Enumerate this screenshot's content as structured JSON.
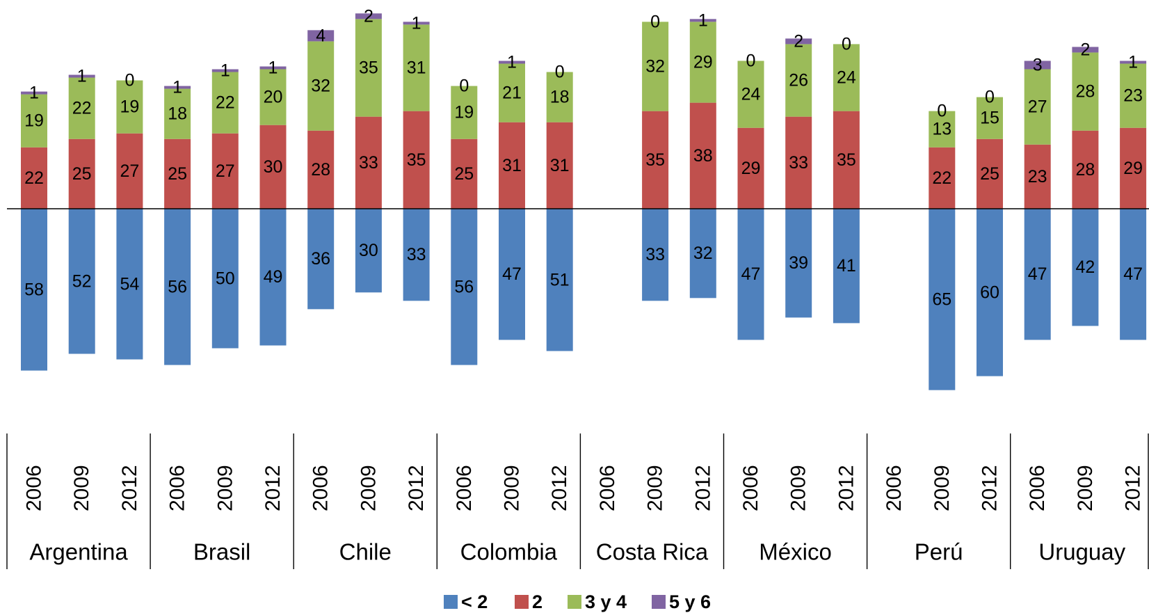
{
  "chart_data": {
    "type": "bar",
    "stacked": true,
    "series": [
      {
        "name": "< 2",
        "color": "#4F81BD",
        "direction": "down"
      },
      {
        "name": "2",
        "color": "#C0504D",
        "direction": "up"
      },
      {
        "name": "3 y 4",
        "color": "#9BBB59",
        "direction": "up"
      },
      {
        "name": "5 y 6",
        "color": "#8064A2",
        "direction": "up"
      }
    ],
    "groups": [
      {
        "country": "Argentina",
        "bars": [
          {
            "year": "2006",
            "values": [
              58,
              22,
              19,
              1
            ]
          },
          {
            "year": "2009",
            "values": [
              52,
              25,
              22,
              1
            ]
          },
          {
            "year": "2012",
            "values": [
              54,
              27,
              19,
              0
            ]
          }
        ]
      },
      {
        "country": "Brasil",
        "bars": [
          {
            "year": "2006",
            "values": [
              56,
              25,
              18,
              1
            ]
          },
          {
            "year": "2009",
            "values": [
              50,
              27,
              22,
              1
            ]
          },
          {
            "year": "2012",
            "values": [
              49,
              30,
              20,
              1
            ]
          }
        ]
      },
      {
        "country": "Chile",
        "bars": [
          {
            "year": "2006",
            "values": [
              36,
              28,
              32,
              4
            ]
          },
          {
            "year": "2009",
            "values": [
              30,
              33,
              35,
              2
            ]
          },
          {
            "year": "2012",
            "values": [
              33,
              35,
              31,
              1
            ]
          }
        ]
      },
      {
        "country": "Colombia",
        "bars": [
          {
            "year": "2006",
            "values": [
              56,
              25,
              19,
              0
            ]
          },
          {
            "year": "2009",
            "values": [
              47,
              31,
              21,
              1
            ]
          },
          {
            "year": "2012",
            "values": [
              51,
              31,
              18,
              0
            ]
          }
        ]
      },
      {
        "country": "Costa Rica",
        "bars": [
          {
            "year": "2006",
            "values": null
          },
          {
            "year": "2009",
            "values": [
              33,
              35,
              32,
              0
            ]
          },
          {
            "year": "2012",
            "values": [
              32,
              38,
              29,
              1
            ]
          }
        ]
      },
      {
        "country": "México",
        "bars": [
          {
            "year": "2006",
            "values": [
              47,
              29,
              24,
              0
            ]
          },
          {
            "year": "2009",
            "values": [
              39,
              33,
              26,
              2
            ]
          },
          {
            "year": "2012",
            "values": [
              41,
              35,
              24,
              0
            ]
          }
        ]
      },
      {
        "country": "Perú",
        "bars": [
          {
            "year": "2006",
            "values": null
          },
          {
            "year": "2009",
            "values": [
              65,
              22,
              13,
              0
            ]
          },
          {
            "year": "2012",
            "values": [
              60,
              25,
              15,
              0
            ]
          }
        ]
      },
      {
        "country": "Uruguay",
        "bars": [
          {
            "year": "2006",
            "values": [
              47,
              23,
              27,
              3
            ]
          },
          {
            "year": "2009",
            "values": [
              42,
              28,
              28,
              2
            ]
          },
          {
            "year": "2012",
            "values": [
              47,
              29,
              23,
              1
            ]
          }
        ]
      }
    ],
    "title": "",
    "xlabel": "",
    "ylabel": "",
    "grid": false,
    "legend_position": "bottom-center"
  }
}
